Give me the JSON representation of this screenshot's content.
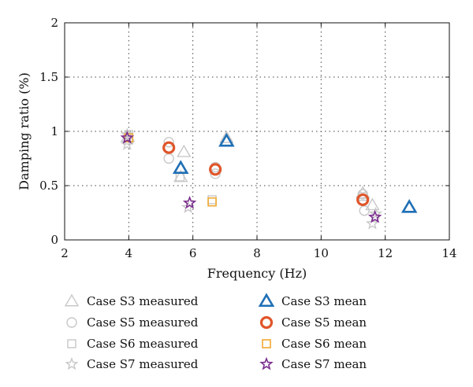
{
  "chart_data": {
    "type": "scatter",
    "title": "",
    "xlabel": "Frequency (Hz)",
    "ylabel": "Damping ratio (%)",
    "xlim": [
      2,
      14
    ],
    "ylim": [
      0,
      2
    ],
    "xticks": [
      "2",
      "4",
      "6",
      "8",
      "10",
      "12",
      "14"
    ],
    "yticks": [
      "0",
      "0.5",
      "1",
      "1.5",
      "2"
    ],
    "grid": "dotted",
    "legend_placement": "bottom",
    "series": [
      {
        "name": "Case S3 measured",
        "marker": "triangle",
        "style": "measured",
        "color": "#c8c8c8",
        "points": [
          [
            3.97,
            0.95
          ],
          [
            5.62,
            0.66
          ],
          [
            5.62,
            0.58
          ],
          [
            5.72,
            0.81
          ],
          [
            7.05,
            0.94
          ],
          [
            11.3,
            0.43
          ],
          [
            11.6,
            0.32
          ],
          [
            12.75,
            0.3
          ]
        ]
      },
      {
        "name": "Case S5 measured",
        "marker": "circle",
        "style": "measured",
        "color": "#c8c8c8",
        "points": [
          [
            5.25,
            0.9
          ],
          [
            5.25,
            0.75
          ],
          [
            6.7,
            0.67
          ],
          [
            6.7,
            0.61
          ],
          [
            11.3,
            0.42
          ],
          [
            11.35,
            0.27
          ]
        ]
      },
      {
        "name": "Case S6 measured",
        "marker": "square",
        "style": "measured",
        "color": "#c8c8c8",
        "points": [
          [
            4.0,
            0.97
          ],
          [
            4.0,
            0.92
          ],
          [
            5.6,
            0.58
          ],
          [
            6.6,
            0.37
          ],
          [
            11.3,
            0.4
          ]
        ]
      },
      {
        "name": "Case S7 measured",
        "marker": "star",
        "style": "measured",
        "color": "#c8c8c8",
        "points": [
          [
            3.95,
            0.88
          ],
          [
            3.95,
            0.97
          ],
          [
            5.85,
            0.3
          ],
          [
            11.6,
            0.15
          ],
          [
            11.7,
            0.24
          ]
        ]
      },
      {
        "name": "Case S3 mean",
        "marker": "triangle",
        "style": "mean",
        "color": "#1f6fb5",
        "points": [
          [
            5.62,
            0.66
          ],
          [
            7.05,
            0.91
          ],
          [
            12.75,
            0.3
          ]
        ]
      },
      {
        "name": "Case S5 mean",
        "marker": "circle",
        "style": "mean",
        "color": "#e0562a",
        "points": [
          [
            5.25,
            0.85
          ],
          [
            6.7,
            0.65
          ],
          [
            11.3,
            0.37
          ]
        ]
      },
      {
        "name": "Case S6 mean",
        "marker": "square",
        "style": "mean",
        "color": "#f0a830",
        "points": [
          [
            4.0,
            0.94
          ],
          [
            6.6,
            0.35
          ]
        ]
      },
      {
        "name": "Case S7 mean",
        "marker": "star",
        "style": "mean",
        "color": "#7b2d8e",
        "points": [
          [
            3.95,
            0.94
          ],
          [
            5.9,
            0.34
          ],
          [
            11.68,
            0.21
          ]
        ]
      }
    ]
  }
}
